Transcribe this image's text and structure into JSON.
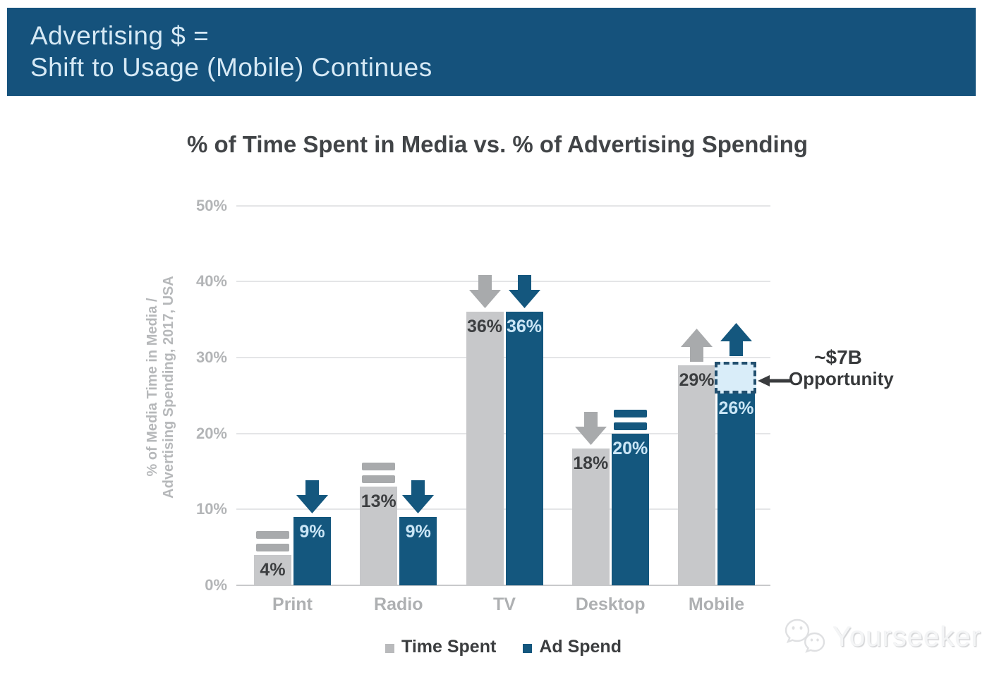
{
  "header": {
    "line1": "Advertising $ =",
    "line2": "Shift to Usage (Mobile) Continues"
  },
  "chart_data": {
    "type": "bar",
    "title": "% of Time Spent in Media vs. % of Advertising Spending",
    "ylabel": "% of Media Time in Media / Advertising Spending, 2017, USA",
    "ylabel_line1": "% of Media Time in Media /",
    "ylabel_line2": "Advertising Spending, 2017, USA",
    "categories": [
      "Print",
      "Radio",
      "TV",
      "Desktop",
      "Mobile"
    ],
    "series": [
      {
        "name": "Time Spent",
        "color": "#C7C8CA",
        "values": [
          4,
          13,
          36,
          18,
          29
        ],
        "labels": [
          "4%",
          "13%",
          "36%",
          "18%",
          "29%"
        ],
        "trend": [
          "flat",
          "flat",
          "down",
          "down",
          "up"
        ]
      },
      {
        "name": "Ad Spend",
        "color": "#14577E",
        "values": [
          9,
          9,
          36,
          20,
          26
        ],
        "labels": [
          "9%",
          "9%",
          "36%",
          "20%",
          "26%"
        ],
        "trend": [
          "down",
          "down",
          "down",
          "flat",
          "up"
        ]
      }
    ],
    "ylim": [
      0,
      50
    ],
    "ytick_labels": [
      "0%",
      "10%",
      "20%",
      "30%",
      "40%",
      "50%"
    ],
    "grid": "horizontal",
    "legend_position": "bottom",
    "trend_colors": {
      "gray": "#A8AAAC",
      "blue": "#14577E"
    }
  },
  "annotation": {
    "line1": "~$7B",
    "line2": "Opportunity"
  },
  "watermark": {
    "text": "Yourseeker"
  }
}
